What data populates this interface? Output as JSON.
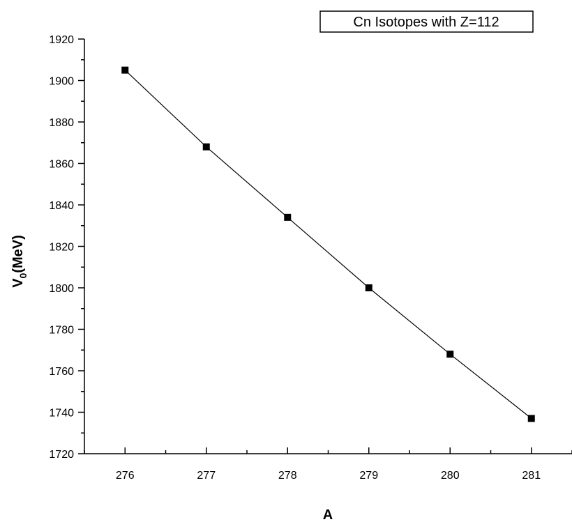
{
  "chart_data": {
    "type": "line",
    "legend": {
      "label": "Cn Isotopes with Z=112",
      "placement": "top-right"
    },
    "xlabel": "A",
    "ylabel": {
      "prefix": "V",
      "subscript": "0",
      "suffix": "(MeV)"
    },
    "xlim": [
      275.5,
      281.5
    ],
    "ylim": [
      1720,
      1920
    ],
    "x_ticks": [
      276,
      277,
      278,
      279,
      280,
      281
    ],
    "y_ticks": [
      1720,
      1740,
      1760,
      1780,
      1800,
      1820,
      1840,
      1860,
      1880,
      1900,
      1920
    ],
    "grid": false,
    "series": [
      {
        "name": "Cn Isotopes with Z=112",
        "marker": "square",
        "line": true,
        "color": "#000000",
        "x": [
          276,
          277,
          278,
          279,
          280,
          281
        ],
        "y": [
          1905,
          1868,
          1834,
          1800,
          1768,
          1737
        ]
      }
    ]
  }
}
